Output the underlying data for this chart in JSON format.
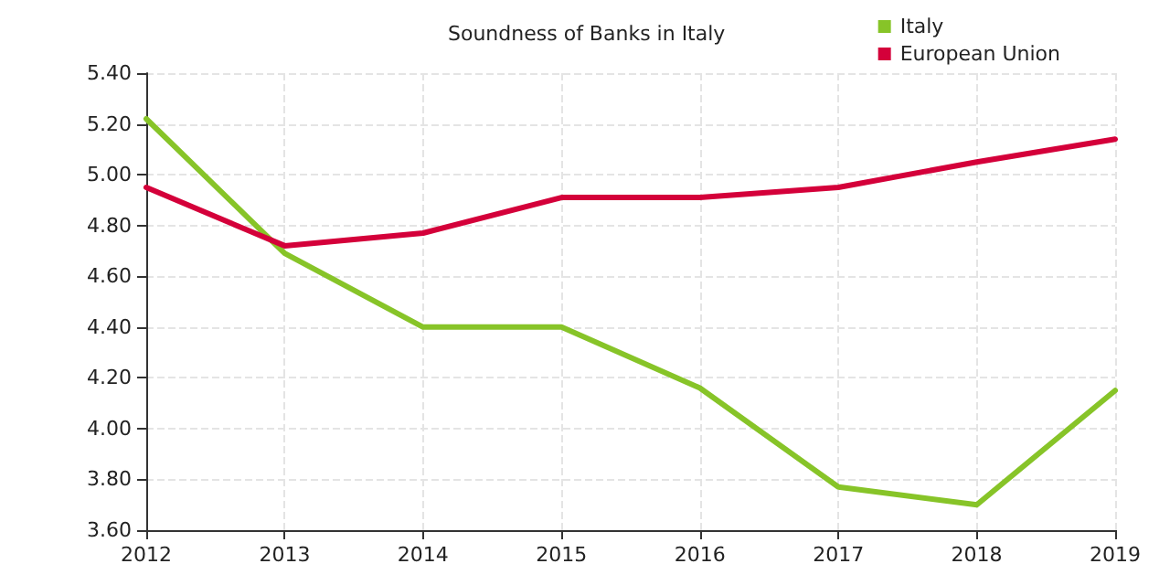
{
  "chart_data": {
    "type": "line",
    "title": "Soundness of Banks in Italy",
    "x": [
      2012,
      2013,
      2014,
      2015,
      2016,
      2017,
      2018,
      2019
    ],
    "series": [
      {
        "name": "Italy",
        "color": "#87c428",
        "values": [
          5.22,
          4.69,
          4.4,
          4.4,
          4.16,
          3.77,
          3.7,
          4.15
        ]
      },
      {
        "name": "European Union",
        "color": "#d4003a",
        "values": [
          4.95,
          4.72,
          4.77,
          4.91,
          4.91,
          4.95,
          5.05,
          5.14
        ]
      }
    ],
    "xlim": [
      2012,
      2019
    ],
    "xticks": [
      2012,
      2013,
      2014,
      2015,
      2016,
      2017,
      2018,
      2019
    ],
    "ylim": [
      3.6,
      5.4
    ],
    "yticks": [
      {
        "value": 3.6,
        "label": "3.60"
      },
      {
        "value": 3.8,
        "label": "3.80"
      },
      {
        "value": 4.0,
        "label": "4.00"
      },
      {
        "value": 4.2,
        "label": "4.20"
      },
      {
        "value": 4.4,
        "label": "4.40"
      },
      {
        "value": 4.6,
        "label": "4.60"
      },
      {
        "value": 4.8,
        "label": "4.80"
      },
      {
        "value": 5.0,
        "label": "5.00"
      },
      {
        "value": 5.2,
        "label": "5.20"
      },
      {
        "value": 5.4,
        "label": "5.40"
      }
    ],
    "grid": true,
    "legend": "top right",
    "marker": "none",
    "line_style": "solid"
  }
}
